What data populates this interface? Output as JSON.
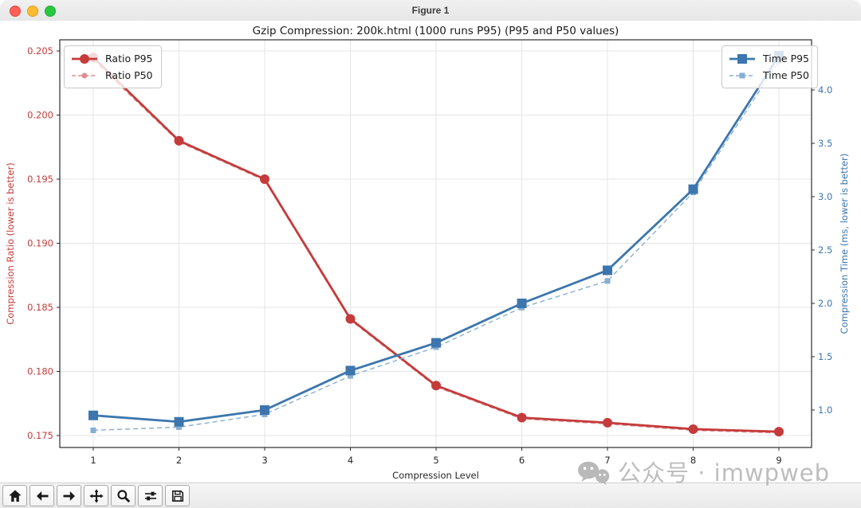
{
  "window": {
    "title": "Figure 1"
  },
  "chart_data": {
    "type": "line",
    "title": "Gzip Compression: 200k.html (1000 runs P95) (P95 and P50 values)",
    "xlabel": "Compression Level",
    "ylabel_left": "Compression Ratio (lower is better)",
    "ylabel_right": "Compression Time (ms, lower is better)",
    "x": [
      1,
      2,
      3,
      4,
      5,
      6,
      7,
      8,
      9
    ],
    "series": [
      {
        "name": "Ratio P95",
        "axis": "left",
        "style": "solid",
        "marker": "circle",
        "marker_size": 12,
        "color": "#c53b3b",
        "values": [
          0.2045,
          0.198,
          0.195,
          0.1841,
          0.1789,
          0.1764,
          0.176,
          0.1755,
          0.1753
        ]
      },
      {
        "name": "Ratio P50",
        "axis": "left",
        "style": "dashed",
        "marker": "circle",
        "marker_size": 7,
        "color": "#dc9090",
        "values": [
          0.2043,
          0.1979,
          0.1949,
          0.184,
          0.1788,
          0.1763,
          0.1759,
          0.1754,
          0.1752
        ]
      },
      {
        "name": "Time P95",
        "axis": "right",
        "style": "solid",
        "marker": "square",
        "marker_size": 12,
        "color": "#3d76ae",
        "values": [
          0.95,
          0.89,
          1.0,
          1.37,
          1.63,
          2.0,
          2.31,
          3.07,
          4.32
        ]
      },
      {
        "name": "Time P50",
        "axis": "right",
        "style": "dashed",
        "marker": "square",
        "marker_size": 7,
        "color": "#86afd3",
        "values": [
          0.81,
          0.84,
          0.96,
          1.32,
          1.59,
          1.96,
          2.21,
          3.04,
          4.27
        ]
      }
    ],
    "ylim_left": [
      0.1741,
      0.2059
    ],
    "ylim_right": [
      0.649,
      4.47
    ],
    "yticks_left": [
      0.175,
      0.18,
      0.185,
      0.19,
      0.195,
      0.2,
      0.205
    ],
    "yticks_right": [
      1.0,
      1.5,
      2.0,
      2.5,
      3.0,
      3.5,
      4.0
    ],
    "grid": true,
    "legend_left_position": "upper left",
    "legend_right_position": "upper right"
  },
  "colors": {
    "ratio_axis": "#c53b3b",
    "time_axis": "#3d76ae",
    "grid": "#e4e4e4",
    "spine": "#2b2b2b",
    "watermark": "#bdbdbd"
  },
  "toolbar": {
    "buttons": [
      {
        "name": "home"
      },
      {
        "name": "back"
      },
      {
        "name": "forward"
      },
      {
        "name": "pan"
      },
      {
        "name": "zoom"
      },
      {
        "name": "subplots"
      },
      {
        "name": "save"
      }
    ]
  },
  "watermark": {
    "text": "公众号 · imwpweb",
    "icon": "wechat-icon"
  }
}
